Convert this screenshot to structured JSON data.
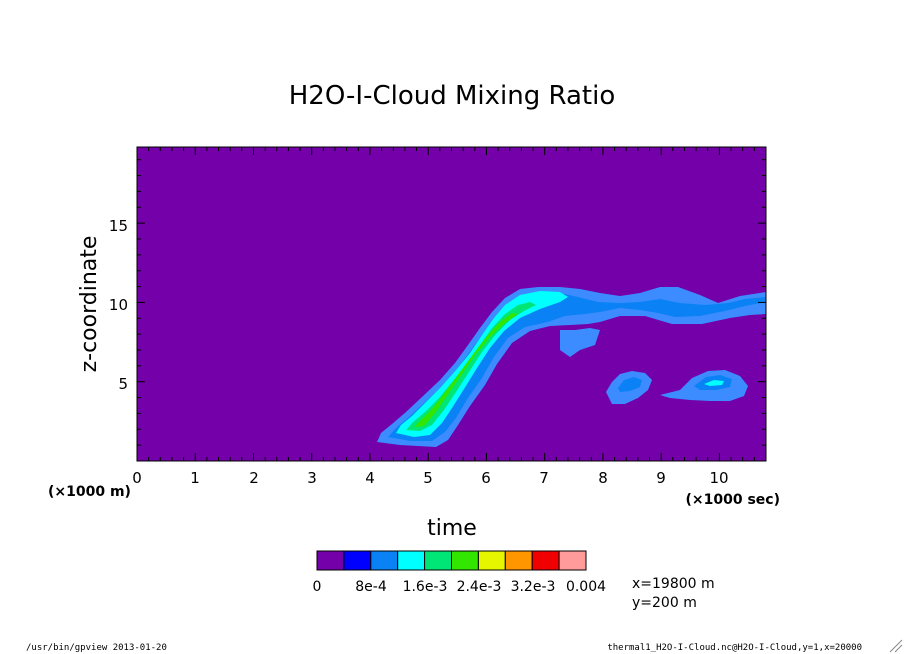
{
  "chart_data": {
    "type": "heatmap",
    "title": "H2O-I-Cloud Mixing Ratio",
    "xlabel": "time",
    "ylabel": "z-coordinate",
    "x_unit_note": "(×1000 sec)",
    "y_unit_note": "(×1000 m)",
    "xlim": [
      0,
      10.8
    ],
    "ylim": [
      0,
      19.8
    ],
    "x_ticks": [
      "0",
      "1",
      "2",
      "3",
      "4",
      "5",
      "6",
      "7",
      "8",
      "9",
      "10"
    ],
    "y_ticks": [
      "5",
      "10",
      "15"
    ],
    "colorbar": {
      "labels": [
        "0",
        "8e-4",
        "1.6e-3",
        "2.4e-3",
        "3.2e-3",
        "0.004"
      ],
      "colors": [
        "#7300a8",
        "#0000ff",
        "#0a82f5",
        "#00ffff",
        "#00e676",
        "#32e600",
        "#e6f500",
        "#ff9600",
        "#f00000",
        "#ff9b9b"
      ]
    },
    "background_color": "#7300a8",
    "features": [
      {
        "name": "main rising plume",
        "x_range": [
          4.1,
          10.8
        ],
        "z_range": [
          1.0,
          11.0
        ],
        "max_level": "1.6e-3 to 2.4e-3"
      },
      {
        "name": "secondary patch 1",
        "x_range": [
          8.1,
          8.8
        ],
        "z_range": [
          3.6,
          5.6
        ],
        "max_level": "8e-4 to 1.2e-3"
      },
      {
        "name": "secondary patch 2",
        "x_range": [
          9.0,
          10.5
        ],
        "z_range": [
          3.9,
          5.8
        ],
        "max_level": "8e-4 to 1.2e-3"
      }
    ]
  },
  "section": {
    "x": "x=19800 m",
    "y": "y=200 m"
  },
  "footer": {
    "left": "/usr/bin/gpview  2013-01-20",
    "right": "thermal1_H2O-I-Cloud.nc@H2O-I-Cloud,y=1,x=20000"
  },
  "colors": {
    "purple": "#7300a8",
    "blue": "#0a82f5",
    "light_blue": "#3c8cff",
    "cyan": "#00ffff",
    "green": "#00e676",
    "yellow_green": "#32e600"
  }
}
